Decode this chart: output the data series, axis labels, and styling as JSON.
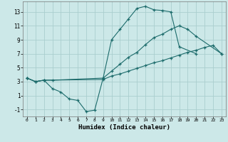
{
  "xlabel": "Humidex (Indice chaleur)",
  "xlim": [
    -0.5,
    23.5
  ],
  "ylim": [
    -2,
    14.5
  ],
  "yticks": [
    -1,
    1,
    3,
    5,
    7,
    9,
    11,
    13
  ],
  "xticks": [
    0,
    1,
    2,
    3,
    4,
    5,
    6,
    7,
    8,
    9,
    10,
    11,
    12,
    13,
    14,
    15,
    16,
    17,
    18,
    19,
    20,
    21,
    22,
    23
  ],
  "bg_color": "#cce8e8",
  "grid_color": "#aacece",
  "line_color": "#1c6b6b",
  "line1_x": [
    0,
    1,
    2,
    3,
    4,
    5,
    6,
    7,
    8,
    9,
    10,
    11,
    12,
    13,
    14,
    15,
    16,
    17,
    18,
    20
  ],
  "line1_y": [
    3.5,
    3.0,
    3.2,
    2.0,
    1.5,
    0.5,
    0.3,
    -1.3,
    -1.1,
    3.5,
    9.0,
    10.5,
    12.0,
    13.5,
    13.8,
    13.3,
    13.2,
    13.0,
    8.0,
    7.0
  ],
  "line2_x": [
    0,
    1,
    2,
    3,
    9,
    10,
    11,
    12,
    13,
    14,
    15,
    16,
    17,
    18,
    19,
    20,
    23
  ],
  "line2_y": [
    3.5,
    3.0,
    3.2,
    3.2,
    3.5,
    4.5,
    5.5,
    6.5,
    7.2,
    8.3,
    9.3,
    9.8,
    10.5,
    11.0,
    10.5,
    9.5,
    7.0
  ],
  "line3_x": [
    0,
    1,
    2,
    9,
    10,
    11,
    12,
    13,
    14,
    15,
    16,
    17,
    18,
    19,
    20,
    21,
    22,
    23
  ],
  "line3_y": [
    3.5,
    3.0,
    3.2,
    3.3,
    3.8,
    4.1,
    4.5,
    4.9,
    5.3,
    5.7,
    6.0,
    6.4,
    6.8,
    7.2,
    7.5,
    7.9,
    8.2,
    7.0
  ]
}
